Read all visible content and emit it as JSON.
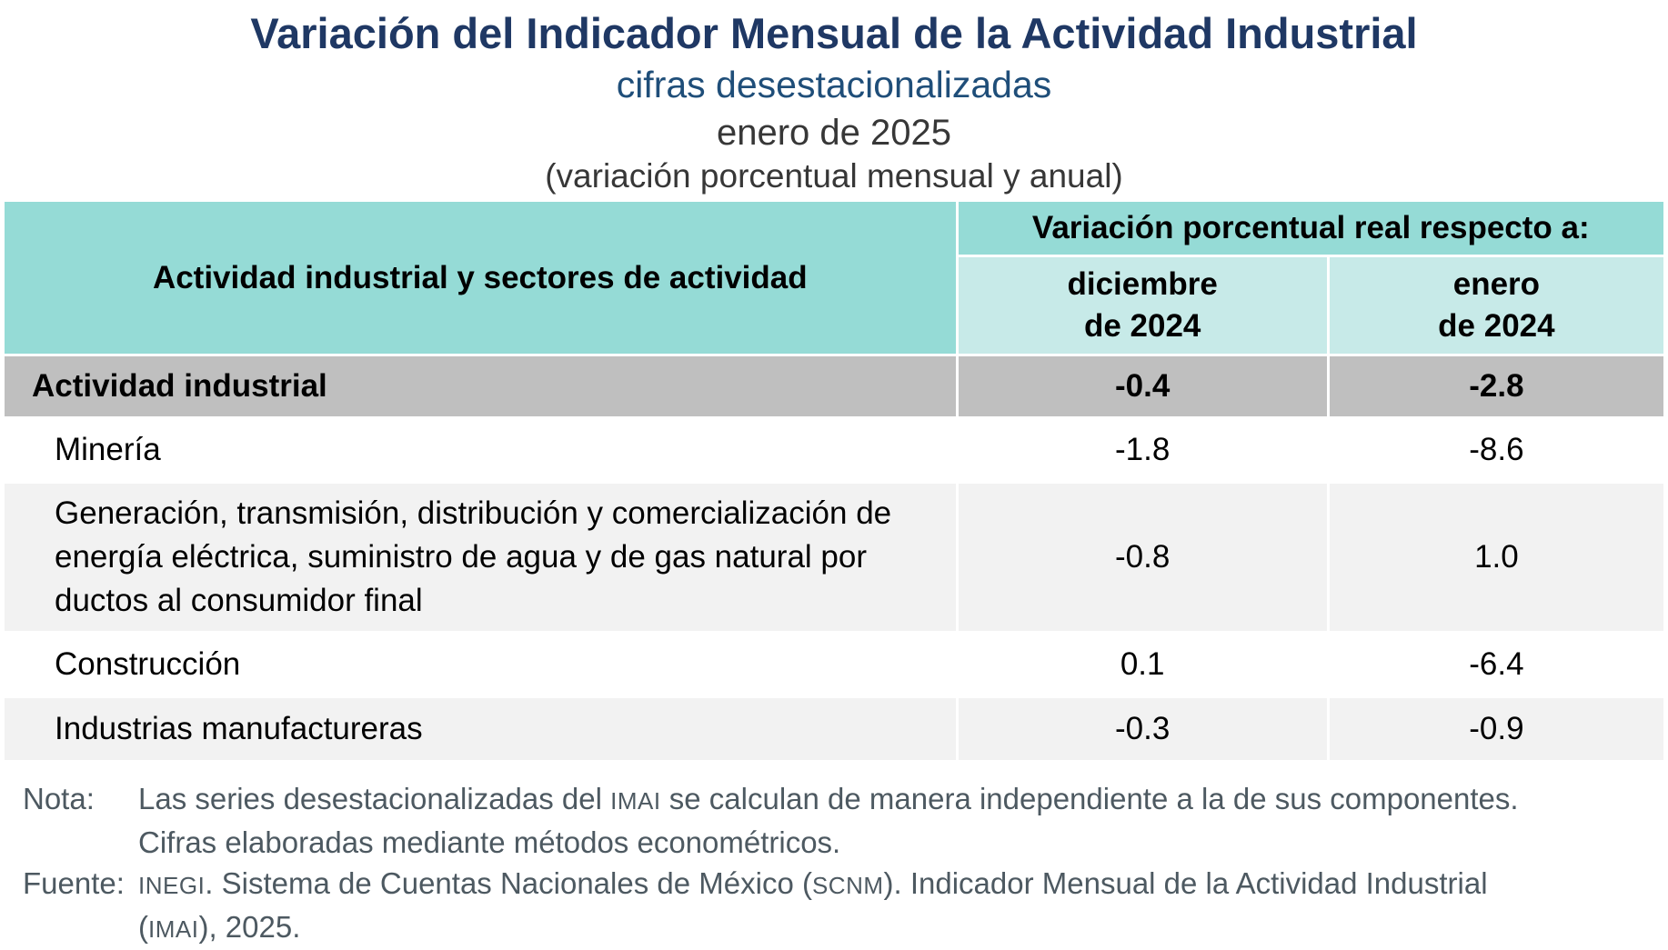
{
  "titles": {
    "main": "Variación del Indicador Mensual de la Actividad Industrial",
    "subtitle": "cifras desestacionalizadas",
    "period": "enero de 2025",
    "measure": "(variación porcentual mensual y anual)"
  },
  "table": {
    "stub_header": "Actividad industrial y sectores de actividad",
    "group_header": "Variación porcentual real respecto a:",
    "col_dec": {
      "line1": "diciembre",
      "line2": "de 2024"
    },
    "col_ene": {
      "line1": "enero",
      "line2": "de 2024"
    },
    "rows": [
      {
        "label": "Actividad industrial",
        "dec2024": "-0.4",
        "ene2024": "-2.8"
      },
      {
        "label": "Minería",
        "dec2024": "-1.8",
        "ene2024": "-8.6"
      },
      {
        "label": "Generación, transmisión, distribución y comercialización de energía eléctrica, suministro de agua y de gas natural por ductos al consumidor final",
        "dec2024": "-0.8",
        "ene2024": "1.0"
      },
      {
        "label": "Construcción",
        "dec2024": "0.1",
        "ene2024": "-6.4"
      },
      {
        "label": "Industrias manufactureras",
        "dec2024": "-0.3",
        "ene2024": "-0.9"
      }
    ]
  },
  "notes": {
    "nota_label": "Nota:",
    "nota_line1_a": "Las series desestacionalizadas del ",
    "nota_line1_sc": "IMAI",
    "nota_line1_b": " se calculan de manera independiente a la de sus componentes.",
    "nota_line2": "Cifras elaboradas mediante métodos econométricos.",
    "fuente_label": "Fuente:",
    "fuente_line1_sc1": "INEGI",
    "fuente_line1_a": ". Sistema de Cuentas Nacionales de México (",
    "fuente_line1_sc2": "SCNM",
    "fuente_line1_b": "). Indicador Mensual de la Actividad Industrial",
    "fuente_line2_a": "(",
    "fuente_line2_sc": "IMAI",
    "fuente_line2_b": "), 2025."
  },
  "colors": {
    "header_teal": "#95dbd6",
    "subheader_teal": "#c7eae8",
    "total_row_gray": "#bfbfbf",
    "alt_row_gray": "#f2f2f2",
    "title_navy": "#1f3864",
    "subtitle_blue": "#1f4e79",
    "note_slate": "#4d5961"
  }
}
